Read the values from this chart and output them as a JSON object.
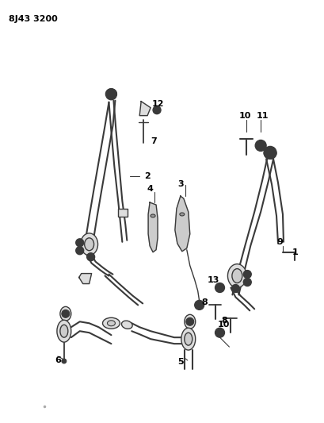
{
  "title_code": "8J43 3200",
  "background_color": "#ffffff",
  "line_color": "#3a3a3a",
  "text_color": "#000000",
  "fig_width": 4.1,
  "fig_height": 5.33,
  "dpi": 100
}
